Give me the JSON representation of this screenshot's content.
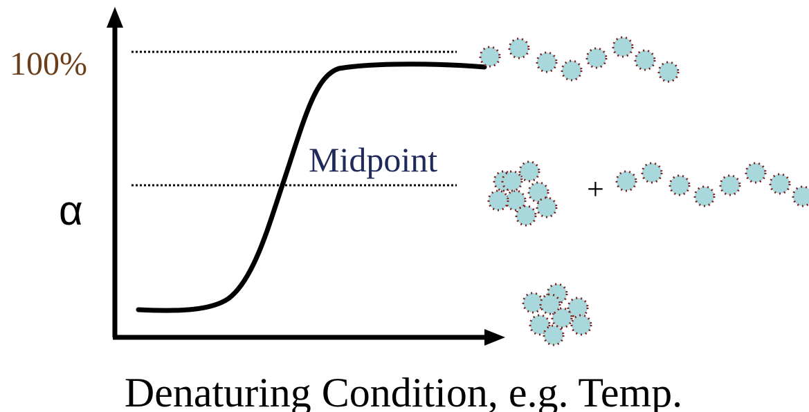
{
  "axis": {
    "top_label": "100%",
    "y_label": "α",
    "x_label": "Denaturing Condition, e.g. Temp."
  },
  "annotations": {
    "midpoint": "Midpoint",
    "plus": "+"
  }
}
